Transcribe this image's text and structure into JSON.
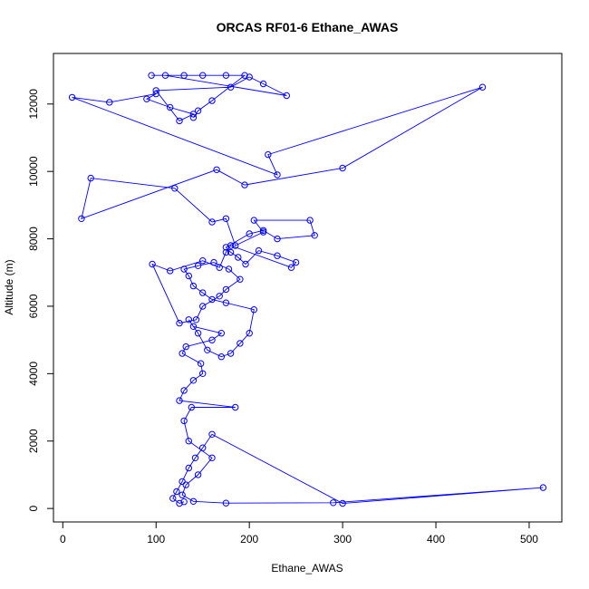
{
  "chart_data": {
    "type": "scatter",
    "title": "ORCAS RF01-6 Ethane_AWAS",
    "xlabel": "Ethane_AWAS",
    "ylabel": "Altitude (m)",
    "xlim": [
      -10,
      535
    ],
    "ylim": [
      -400,
      13500
    ],
    "xticks": [
      0,
      100,
      200,
      300,
      400,
      500
    ],
    "yticks": [
      0,
      2000,
      4000,
      6000,
      8000,
      10000,
      12000
    ],
    "grid": false,
    "legend": "none",
    "point_style": "open-circle",
    "line_style": "connected",
    "series": [
      {
        "color": "#0000ff",
        "x": [
          130,
          125,
          118,
          122,
          128,
          135,
          142,
          150,
          160,
          300,
          515,
          290,
          175,
          140,
          128,
          132,
          145,
          160,
          135,
          130,
          138,
          185,
          125,
          130,
          140,
          150,
          148,
          128,
          132,
          160,
          170,
          140,
          135,
          145,
          155,
          170,
          180,
          190,
          200,
          205,
          175,
          160,
          150,
          140,
          135,
          130,
          145,
          162,
          178,
          190,
          175,
          168,
          150,
          143,
          125,
          96,
          115,
          150,
          168,
          175,
          180,
          245,
          250,
          230,
          210,
          196,
          188,
          180,
          175,
          200,
          215,
          230,
          270,
          265,
          205,
          215,
          185,
          175,
          160,
          120,
          30,
          20,
          165,
          195,
          300,
          450,
          220,
          230,
          10,
          50,
          100,
          90,
          115,
          140,
          125,
          100,
          180,
          200,
          215,
          240,
          110,
          95,
          130,
          150,
          175,
          195,
          160,
          145,
          140
        ],
        "y": [
          200,
          150,
          300,
          500,
          800,
          1200,
          1500,
          1800,
          2200,
          150,
          620,
          170,
          160,
          210,
          400,
          700,
          1000,
          1500,
          2000,
          2600,
          3000,
          3000,
          3200,
          3500,
          3800,
          4000,
          4300,
          4600,
          4800,
          5000,
          5200,
          5400,
          5600,
          5200,
          4700,
          4500,
          4600,
          4900,
          5200,
          5900,
          6100,
          6200,
          6400,
          6600,
          6900,
          7100,
          7200,
          7300,
          7100,
          6800,
          6500,
          6300,
          6000,
          5600,
          5500,
          7250,
          7050,
          7350,
          7150,
          7600,
          7800,
          7150,
          7300,
          7500,
          7650,
          7250,
          7450,
          7600,
          7750,
          8150,
          8250,
          8000,
          8100,
          8550,
          8550,
          8200,
          7800,
          8600,
          8500,
          9500,
          9800,
          8600,
          10050,
          9600,
          10100,
          12500,
          10500,
          9900,
          12200,
          12050,
          12300,
          12150,
          11900,
          11700,
          11500,
          12400,
          12500,
          12800,
          12600,
          12250,
          12850,
          12850,
          12850,
          12850,
          12850,
          12850,
          12100,
          11800,
          11600
        ]
      }
    ]
  }
}
